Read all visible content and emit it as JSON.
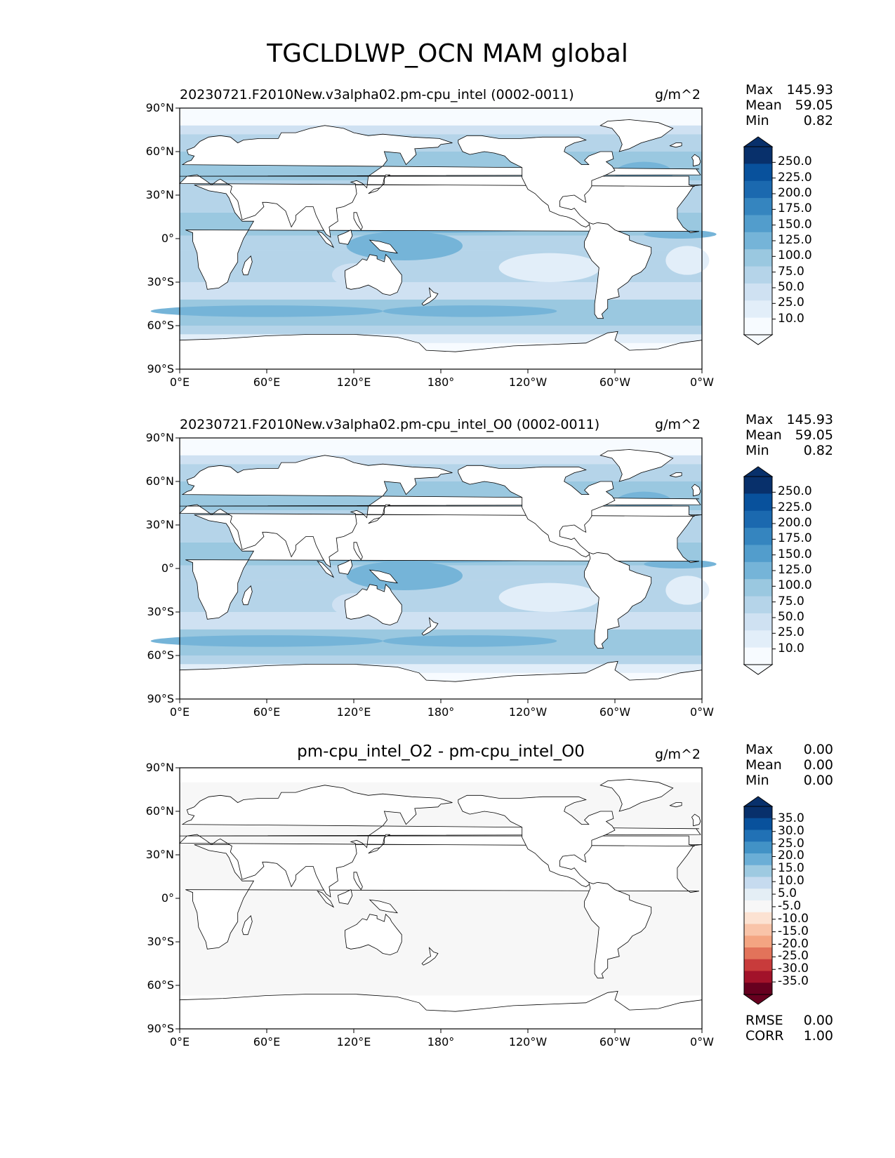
{
  "figure": {
    "title": "TGCLDLWP_OCN MAM global"
  },
  "colors": {
    "blues": [
      "#f7fbff",
      "#e2eef9",
      "#cfe1f2",
      "#b5d4e9",
      "#9ac8e0",
      "#75b4d8",
      "#529dcc",
      "#3585bf",
      "#1b69af",
      "#08519c",
      "#08306b"
    ],
    "diverging": [
      "#67001f",
      "#a2122a",
      "#c83b3b",
      "#e2735a",
      "#f4a582",
      "#f9c4a9",
      "#fce2d2",
      "#f7f7f7",
      "#e4eef5",
      "#c6dbef",
      "#9ecae1",
      "#6baed6",
      "#4292c6",
      "#2171b5",
      "#08519c",
      "#08306b"
    ],
    "land_outline": "#000000"
  },
  "axis_ticks": {
    "lat": [
      "90°N",
      "60°N",
      "30°N",
      "0°",
      "30°S",
      "60°S",
      "90°S"
    ],
    "lon": [
      "0°E",
      "60°E",
      "120°E",
      "180°",
      "120°W",
      "60°W",
      "0°W"
    ]
  },
  "panels": [
    {
      "title": "20230721.F2010New.v3alpha02.pm-cpu_intel (0002-0011)",
      "units": "g/m^2",
      "stats": [
        {
          "key": "Max",
          "value": "145.93"
        },
        {
          "key": "Mean",
          "value": "59.05"
        },
        {
          "key": "Min",
          "value": "0.82"
        }
      ],
      "colorbar_labels": [
        "250.0",
        "225.0",
        "200.0",
        "175.0",
        "150.0",
        "125.0",
        "100.0",
        "75.0",
        "50.0",
        "25.0",
        "10.0"
      ]
    },
    {
      "title": "20230721.F2010New.v3alpha02.pm-cpu_intel_O0 (0002-0011)",
      "units": "g/m^2",
      "stats": [
        {
          "key": "Max",
          "value": "145.93"
        },
        {
          "key": "Mean",
          "value": "59.05"
        },
        {
          "key": "Min",
          "value": "0.82"
        }
      ],
      "colorbar_labels": [
        "250.0",
        "225.0",
        "200.0",
        "175.0",
        "150.0",
        "125.0",
        "100.0",
        "75.0",
        "50.0",
        "25.0",
        "10.0"
      ]
    },
    {
      "title": "pm-cpu_intel_O2 - pm-cpu_intel_O0",
      "units": "g/m^2",
      "stats": [
        {
          "key": "Max",
          "value": "0.00"
        },
        {
          "key": "Mean",
          "value": "0.00"
        },
        {
          "key": "Min",
          "value": "0.00"
        }
      ],
      "colorbar_labels": [
        "35.0",
        "30.0",
        "25.0",
        "20.0",
        "15.0",
        "10.0",
        "5.0",
        "-5.0",
        "-10.0",
        "-15.0",
        "-20.0",
        "-25.0",
        "-30.0",
        "-35.0"
      ],
      "extra_stats": [
        {
          "key": "RMSE",
          "value": "0.00"
        },
        {
          "key": "CORR",
          "value": "1.00"
        }
      ]
    }
  ]
}
